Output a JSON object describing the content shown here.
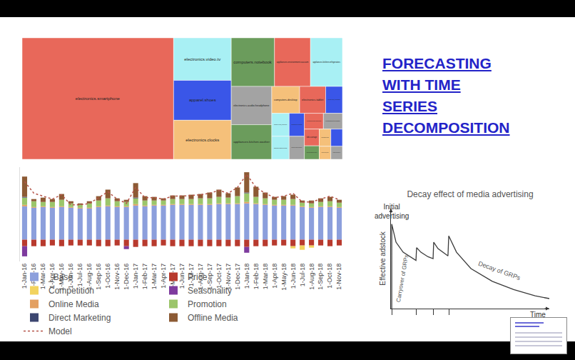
{
  "slide": {
    "title_lines": [
      "FORECASTING",
      "WITH TIME",
      "SERIES",
      "DECOMPOSITION"
    ]
  },
  "chart_data": [
    {
      "type": "treemap",
      "labels": [
        "electronics.smartphone",
        "electronics.video.tv",
        "apparel.shoes",
        "electronics.clocks",
        "computers.notebook",
        "appliances.environment.vacuum",
        "appliances.kitchen.refrigerators",
        "electronics.audio.headphone",
        "appliances.kitchen.washer",
        "computers.desktop",
        "electronics.tablet",
        "furniture.living_room.cabinet",
        "furniture.living_room.sofa",
        "apparel.shoes.keds",
        "construction.tools.drill",
        "appliances.kitchen.microwave",
        "electronics.audio.subwoofer",
        "electronics.telephone",
        "kids.carriage",
        "auto.accessories.player",
        "accessories.bag",
        "appliances.environment.air_heater",
        "appliances.sewing_machine",
        "furniture.bedroom.bed"
      ],
      "values": [
        368,
        49,
        46,
        45,
        42,
        35,
        31,
        31,
        28,
        15,
        14,
        9,
        8,
        8,
        7,
        7,
        6,
        6,
        5,
        4,
        4,
        4,
        3,
        3
      ],
      "colors": [
        "#e8685a",
        "#a8f0f4",
        "#3a56e8",
        "#f5c07a",
        "#6b9c5c",
        "#e8685a",
        "#a8f0f4",
        "#a3a3a3",
        "#6b9c5c",
        "#f5c07a",
        "#e8685a",
        "#3a56e8",
        "#a8f0f4",
        "#a8f0f4",
        "#3a56e8",
        "#a3a3a3",
        "#e8685a",
        "#a3a3a3",
        "#e8685a",
        "#6b9c5c",
        "#f5c07a",
        "#3a56e8",
        "#f5c07a",
        "#a3a3a3"
      ]
    },
    {
      "type": "bar",
      "stacked": true,
      "tick_labels": "x",
      "legend": "bottom",
      "categories": [
        "1-Jan-16",
        "1-Feb-16",
        "1-Mar-16",
        "1-Apr-16",
        "1-May-16",
        "1-Jun-16",
        "1-Jul-16",
        "1-Aug-16",
        "1-Sep-16",
        "1-Oct-16",
        "1-Nov-16",
        "1-Dec-16",
        "1-Jan-17",
        "1-Feb-17",
        "1-Mar-17",
        "1-Apr-17",
        "1-May-17",
        "1-Jun-17",
        "1-Jul-17",
        "1-Aug-17",
        "1-Sep-17",
        "1-Oct-17",
        "1-Nov-17",
        "1-Dec-17",
        "1-Jan-18",
        "1-Feb-18",
        "1-Mar-18",
        "1-Apr-18",
        "1-May-18",
        "1-Jun-18",
        "1-Jul-18",
        "1-Aug-18",
        "1-Sep-18",
        "1-Oct-18",
        "1-Nov-18"
      ],
      "ylim": [
        -30,
        100
      ],
      "series": [
        {
          "name": "_Base",
          "type": "bar",
          "color": "#8c9fdc",
          "values": [
            46,
            44,
            45,
            44,
            45,
            44,
            43,
            43,
            45,
            46,
            45,
            45,
            47,
            46,
            47,
            47,
            48,
            48,
            48,
            48,
            48,
            49,
            49,
            49,
            50,
            49,
            48,
            47,
            47,
            47,
            45,
            44,
            45,
            45,
            44
          ]
        },
        {
          "name": "Price",
          "type": "bar",
          "color": "#b83a2e",
          "values": [
            -9,
            -9,
            -9,
            -8,
            -9,
            -8,
            -8,
            -8,
            -9,
            -9,
            -8,
            -9,
            -10,
            -9,
            -9,
            -8,
            -9,
            -9,
            -9,
            -9,
            -9,
            -9,
            -9,
            -9,
            -10,
            -9,
            -9,
            -8,
            -8,
            -9,
            -8,
            -8,
            -8,
            -9,
            -8
          ]
        },
        {
          "name": "Competition",
          "type": "bar",
          "color": "#f2d35e",
          "values": [
            0,
            0,
            0,
            0,
            0,
            0,
            0,
            0,
            0,
            0,
            0,
            0,
            0,
            0,
            0,
            0,
            0,
            0,
            0,
            0,
            0,
            0,
            0,
            0,
            0,
            0,
            0,
            0,
            0,
            -3,
            -6,
            -3,
            0,
            0,
            0
          ]
        },
        {
          "name": "Seasonality",
          "type": "bar",
          "color": "#7e3b9e",
          "values": [
            -14,
            0,
            0,
            0,
            0,
            0,
            0,
            0,
            0,
            0,
            0,
            -4,
            0,
            0,
            0,
            0,
            0,
            0,
            0,
            0,
            0,
            0,
            0,
            0,
            -8,
            0,
            0,
            0,
            0,
            0,
            0,
            0,
            0,
            0,
            0
          ]
        },
        {
          "name": "Online Media",
          "type": "bar",
          "color": "#e3a062",
          "values": [
            2,
            1,
            1,
            1,
            1,
            1,
            1,
            1,
            1,
            1,
            1,
            1,
            2,
            1,
            1,
            1,
            1,
            1,
            1,
            1,
            1,
            1,
            1,
            1,
            2,
            1,
            1,
            1,
            1,
            1,
            1,
            1,
            1,
            1,
            1
          ]
        },
        {
          "name": "Promotion",
          "type": "bar",
          "color": "#9bc56a",
          "values": [
            10,
            8,
            6,
            7,
            9,
            5,
            4,
            6,
            8,
            10,
            7,
            6,
            8,
            7,
            6,
            6,
            7,
            7,
            7,
            8,
            8,
            9,
            8,
            10,
            12,
            9,
            8,
            7,
            7,
            8,
            5,
            5,
            6,
            7,
            6
          ]
        },
        {
          "name": "Direct Marketing",
          "type": "bar",
          "color": "#3c4670",
          "values": [
            1,
            0,
            0,
            0,
            0,
            0,
            0,
            0,
            0,
            0,
            0,
            0,
            1,
            0,
            0,
            0,
            0,
            0,
            0,
            0,
            0,
            0,
            0,
            0,
            1,
            0,
            0,
            0,
            0,
            0,
            0,
            0,
            0,
            0,
            0
          ]
        },
        {
          "name": "Offline Media",
          "type": "bar",
          "color": "#8c5a34",
          "values": [
            28,
            3,
            6,
            4,
            8,
            3,
            2,
            3,
            6,
            12,
            4,
            3,
            20,
            6,
            5,
            3,
            5,
            5,
            6,
            6,
            8,
            10,
            6,
            12,
            28,
            14,
            8,
            4,
            5,
            6,
            3,
            4,
            5,
            6,
            4
          ]
        },
        {
          "name": "Model",
          "type": "line",
          "line_style": "dotted",
          "color": "#b5544a",
          "values": [
            80,
            64,
            60,
            56,
            62,
            48,
            48,
            50,
            58,
            66,
            56,
            50,
            72,
            58,
            58,
            56,
            60,
            60,
            61,
            62,
            64,
            68,
            64,
            72,
            90,
            72,
            64,
            58,
            60,
            64,
            52,
            52,
            56,
            60,
            55
          ]
        }
      ]
    },
    {
      "type": "line",
      "title": "Decay effect of media advertising",
      "x_label": "Time",
      "y_label": "Effective adstock",
      "color": "#3a3a3a",
      "tick_labels": false,
      "x": [
        0.5,
        0.5,
        3.2,
        7.7,
        15.8,
        16.2,
        18.9,
        23.4,
        26.6,
        27,
        29.7,
        33.3,
        36,
        36.5,
        41.4,
        50.5,
        64,
        77.5,
        91,
        100
      ],
      "values": [
        0,
        93,
        73,
        62,
        53,
        67,
        62,
        57,
        55,
        73,
        66,
        61,
        58,
        80,
        62,
        44,
        30,
        21,
        14,
        11
      ],
      "xlim": [
        0,
        100
      ],
      "ylim": [
        0,
        110
      ],
      "xticks": [
        0.5,
        16.2,
        27,
        36.5
      ],
      "annotations": [
        "Initial advertising",
        "Carryover of GRPs",
        "Decay of GRPs"
      ]
    }
  ]
}
